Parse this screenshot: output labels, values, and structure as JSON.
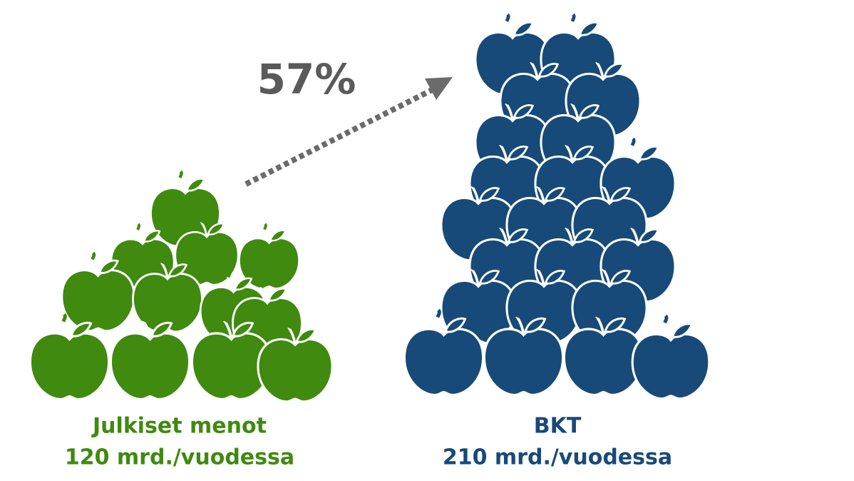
{
  "percent": "57%",
  "left": {
    "title": "Julkiset menot",
    "amount": "120 mrd./vuodessa"
  },
  "right": {
    "title": "BKT",
    "amount": "210 mrd./vuodessa"
  }
}
